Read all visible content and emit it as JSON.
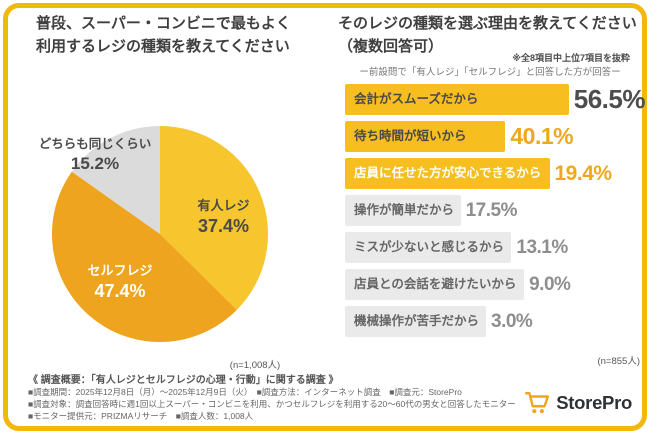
{
  "accent": {
    "frame_color": "#F2B90D",
    "gold": "#EFA81C"
  },
  "left": {
    "title_line1": "普段、スーパー・コンビニで最もよく",
    "title_line2": "利用するレジの種類を教えてください",
    "sample_note": "(n=1,008人)"
  },
  "right": {
    "title_line1": "そのレジの種類を選ぶ理由を教えてください",
    "title_line2": "（複数回答可）",
    "excerpt_note": "※全8項目中上位7項目を抜粋",
    "respondent_note": "ー前設問で「有人レジ」「セルフレジ」と回答した方が回答ー",
    "sample_note": "(n=855人)"
  },
  "chart_data": [
    {
      "type": "pie",
      "title": "普段、スーパー・コンビニで最もよく利用するレジの種類を教えてください",
      "sample": "n=1,008人",
      "slices": [
        {
          "label": "有人レジ",
          "value": 37.4,
          "display": "37.4%",
          "color": "#F7C52D"
        },
        {
          "label": "セルフレジ",
          "value": 47.4,
          "display": "47.4%",
          "color": "#EEA41E"
        },
        {
          "label": "どちらも同じくらい",
          "value": 15.2,
          "display": "15.2%",
          "color": "#DBDBDB"
        }
      ]
    },
    {
      "type": "bar",
      "title": "そのレジの種類を選ぶ理由を教えてください（複数回答可）",
      "sample": "n=855人",
      "xlim": [
        0,
        60
      ],
      "items": [
        {
          "label": "会計がスムーズだから",
          "value": 56.5,
          "display": "56.5%",
          "bar_color": "#F6BE1E",
          "label_color": "#4A4A4A",
          "pct_color": "#4D4D4D"
        },
        {
          "label": "待ち時間が短いから",
          "value": 40.1,
          "display": "40.1%",
          "bar_color": "#F6BE1E",
          "label_color": "#4A4A4A",
          "pct_color": "#EFA81C"
        },
        {
          "label": "店員に任せた方が安心できるから",
          "value": 19.4,
          "display": "19.4%",
          "bar_color": "#F6BE1E",
          "label_color": "#FFFFFF",
          "pct_color": "#EFA81C"
        },
        {
          "label": "操作が簡単だから",
          "value": 17.5,
          "display": "17.5%",
          "bar_color": "#EAEAEA",
          "label_color": "#666666",
          "pct_color": "#8E8E8E"
        },
        {
          "label": "ミスが少ないと感じるから",
          "value": 13.1,
          "display": "13.1%",
          "bar_color": "#EAEAEA",
          "label_color": "#666666",
          "pct_color": "#8E8E8E"
        },
        {
          "label": "店員との会話を避けたいから",
          "value": 9.0,
          "display": "9.0%",
          "bar_color": "#EAEAEA",
          "label_color": "#666666",
          "pct_color": "#8E8E8E"
        },
        {
          "label": "機械操作が苦手だから",
          "value": 3.0,
          "display": "3.0%",
          "bar_color": "#EAEAEA",
          "label_color": "#666666",
          "pct_color": "#8E8E8E"
        }
      ]
    }
  ],
  "footer": {
    "line1": "《 調査概要：「有人レジとセルフレジの心理・行動」に関する調査 》",
    "line2": "■調査期間：2025年12月8日（月）～2025年12月9日（火）　■調査方法：インターネット調査　■調査元：StorePro",
    "line3": "■調査対象：調査回答時に週1回以上スーパー・コンビニを利用、かつセルフレジを利用する20～60代の男女と回答したモニター",
    "line4": "■モニター提供元：PRIZMAリサーチ　■調査人数：1,008人",
    "brand": "StorePro"
  }
}
